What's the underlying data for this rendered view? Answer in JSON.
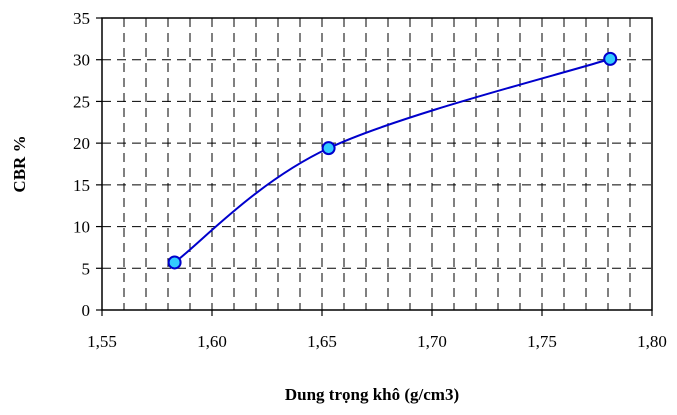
{
  "chart_data": {
    "type": "scatter",
    "title": "",
    "xlabel": "Dung trọng khô (g/cm3)",
    "ylabel": "CBR %",
    "xlim": [
      1.55,
      1.8
    ],
    "ylim": [
      0,
      35
    ],
    "x_ticks": [
      1.55,
      1.6,
      1.65,
      1.7,
      1.75,
      1.8
    ],
    "x_tick_labels": [
      "1,55",
      "1,60",
      "1,65",
      "1,70",
      "1,75",
      "1,80"
    ],
    "y_ticks": [
      0,
      5,
      10,
      15,
      20,
      25,
      30,
      35
    ],
    "y_tick_labels": [
      "0",
      "5",
      "10",
      "15",
      "20",
      "25",
      "30",
      "35"
    ],
    "x_minor_step": 0.01,
    "grid": true,
    "grid_style": "dashed",
    "legend": "none",
    "series": [
      {
        "x": [
          1.583,
          1.653,
          1.781
        ],
        "y": [
          5.7,
          19.4,
          30.1
        ],
        "line": "smooth",
        "line_color": "#0000cc",
        "marker": "circle",
        "marker_fill": "#33ccff",
        "marker_edge": "#0000cc"
      }
    ]
  }
}
